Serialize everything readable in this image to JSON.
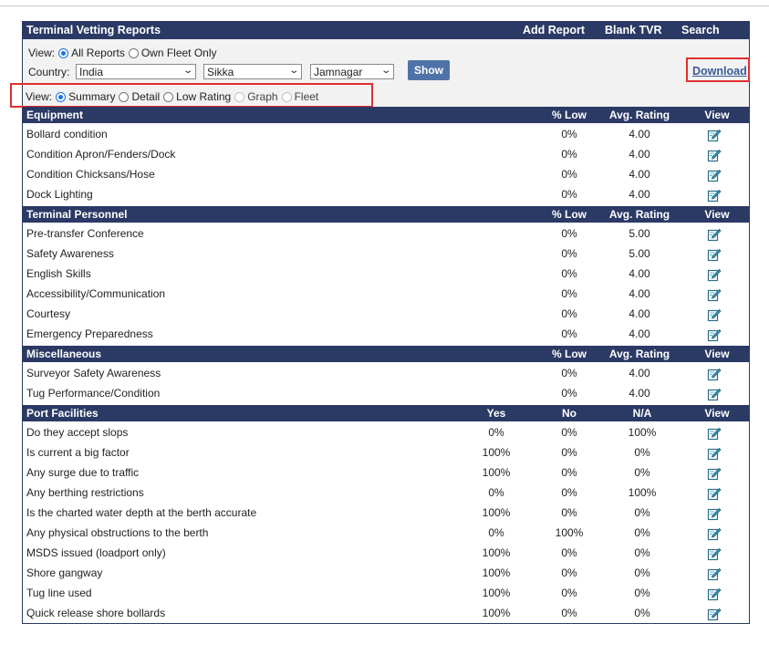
{
  "header": {
    "title": "Terminal Vetting Reports",
    "add_report": "Add Report",
    "blank_tvr": "Blank TVR",
    "search": "Search"
  },
  "filters": {
    "view_label": "View:",
    "view_options": [
      "All Reports",
      "Own Fleet Only"
    ],
    "view_selected": "All Reports",
    "country_label": "Country:",
    "country": "India",
    "port": "Sikka",
    "terminal": "Jamnagar",
    "show_label": "Show",
    "download_label": "Download"
  },
  "view_mode": {
    "label": "View:",
    "options": [
      "Summary",
      "Detail",
      "Low Rating",
      "Graph",
      "Fleet"
    ],
    "selected": "Summary"
  },
  "colors": {
    "header_bg": "#2b3965",
    "accent": "#4f73a8",
    "highlight": "#e03030"
  },
  "sections": [
    {
      "title": "Equipment",
      "cols": [
        "% Low",
        "Avg. Rating",
        "View"
      ],
      "rows": [
        {
          "label": "Bollard condition",
          "v": [
            "0%",
            "4.00"
          ]
        },
        {
          "label": "Condition Apron/Fenders/Dock",
          "v": [
            "0%",
            "4.00"
          ]
        },
        {
          "label": "Condition Chicksans/Hose",
          "v": [
            "0%",
            "4.00"
          ]
        },
        {
          "label": "Dock Lighting",
          "v": [
            "0%",
            "4.00"
          ]
        }
      ]
    },
    {
      "title": "Terminal Personnel",
      "cols": [
        "% Low",
        "Avg. Rating",
        "View"
      ],
      "rows": [
        {
          "label": "Pre-transfer Conference",
          "v": [
            "0%",
            "5.00"
          ]
        },
        {
          "label": "Safety Awareness",
          "v": [
            "0%",
            "5.00"
          ]
        },
        {
          "label": "English Skills",
          "v": [
            "0%",
            "4.00"
          ]
        },
        {
          "label": "Accessibility/Communication",
          "v": [
            "0%",
            "4.00"
          ]
        },
        {
          "label": "Courtesy",
          "v": [
            "0%",
            "4.00"
          ]
        },
        {
          "label": "Emergency Preparedness",
          "v": [
            "0%",
            "4.00"
          ]
        }
      ]
    },
    {
      "title": "Miscellaneous",
      "cols": [
        "% Low",
        "Avg. Rating",
        "View"
      ],
      "rows": [
        {
          "label": "Surveyor Safety Awareness",
          "v": [
            "0%",
            "4.00"
          ]
        },
        {
          "label": "Tug Performance/Condition",
          "v": [
            "0%",
            "4.00"
          ]
        }
      ]
    },
    {
      "title": "Port Facilities",
      "cols": [
        "Yes",
        "No",
        "N/A",
        "View"
      ],
      "rows": [
        {
          "label": "Do they accept slops",
          "v": [
            "0%",
            "0%",
            "100%"
          ]
        },
        {
          "label": "Is current a big factor",
          "v": [
            "100%",
            "0%",
            "0%"
          ]
        },
        {
          "label": "Any surge due to traffic",
          "v": [
            "100%",
            "0%",
            "0%"
          ]
        },
        {
          "label": "Any berthing restrictions",
          "v": [
            "0%",
            "0%",
            "100%"
          ]
        },
        {
          "label": "Is the charted water depth at the berth accurate",
          "v": [
            "100%",
            "0%",
            "0%"
          ]
        },
        {
          "label": "Any physical obstructions to the berth",
          "v": [
            "0%",
            "100%",
            "0%"
          ]
        },
        {
          "label": "MSDS issued (loadport only)",
          "v": [
            "100%",
            "0%",
            "0%"
          ]
        },
        {
          "label": "Shore gangway",
          "v": [
            "100%",
            "0%",
            "0%"
          ]
        },
        {
          "label": "Tug line used",
          "v": [
            "100%",
            "0%",
            "0%"
          ]
        },
        {
          "label": "Quick release shore bollards",
          "v": [
            "100%",
            "0%",
            "0%"
          ]
        }
      ]
    }
  ]
}
